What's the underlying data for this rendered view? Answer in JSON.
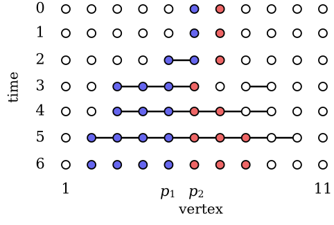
{
  "axis": {
    "y_label": "time",
    "x_label": "vertex",
    "time_ticks": [
      "0",
      "1",
      "2",
      "3",
      "4",
      "5",
      "6"
    ],
    "vertex_tick_first": "1",
    "vertex_tick_last": "11",
    "p1_base": "p",
    "p1_sub": "1",
    "p2_base": "p",
    "p2_sub": "2"
  },
  "colors": {
    "blue": "#6666ee",
    "red": "#ee6666",
    "empty": "#ffffff",
    "stroke": "#000000"
  },
  "vertex_count": 11,
  "rows": [
    {
      "time": 0,
      "states": [
        "w",
        "w",
        "w",
        "w",
        "w",
        "b",
        "r",
        "w",
        "w",
        "w",
        "w"
      ],
      "edges": []
    },
    {
      "time": 1,
      "states": [
        "w",
        "w",
        "w",
        "w",
        "w",
        "b",
        "r",
        "w",
        "w",
        "w",
        "w"
      ],
      "edges": []
    },
    {
      "time": 2,
      "states": [
        "w",
        "w",
        "w",
        "w",
        "b",
        "b",
        "r",
        "w",
        "w",
        "w",
        "w"
      ],
      "edges": [
        [
          5,
          6
        ]
      ]
    },
    {
      "time": 3,
      "states": [
        "w",
        "w",
        "b",
        "b",
        "b",
        "r",
        "w",
        "w",
        "w",
        "w",
        "w"
      ],
      "edges": [
        [
          3,
          4
        ],
        [
          4,
          5
        ],
        [
          5,
          6
        ],
        [
          8,
          9
        ]
      ]
    },
    {
      "time": 4,
      "states": [
        "w",
        "w",
        "b",
        "b",
        "b",
        "r",
        "r",
        "w",
        "w",
        "w",
        "w"
      ],
      "edges": [
        [
          3,
          4
        ],
        [
          4,
          5
        ],
        [
          5,
          6
        ],
        [
          6,
          7
        ],
        [
          7,
          8
        ],
        [
          8,
          9
        ]
      ]
    },
    {
      "time": 5,
      "states": [
        "w",
        "b",
        "b",
        "b",
        "b",
        "r",
        "r",
        "r",
        "w",
        "w",
        "w"
      ],
      "edges": [
        [
          2,
          3
        ],
        [
          3,
          4
        ],
        [
          4,
          5
        ],
        [
          5,
          6
        ],
        [
          6,
          7
        ],
        [
          7,
          8
        ],
        [
          8,
          9
        ],
        [
          9,
          10
        ]
      ]
    },
    {
      "time": 6,
      "states": [
        "w",
        "b",
        "b",
        "b",
        "b",
        "r",
        "r",
        "r",
        "w",
        "w",
        "w"
      ],
      "edges": []
    }
  ]
}
